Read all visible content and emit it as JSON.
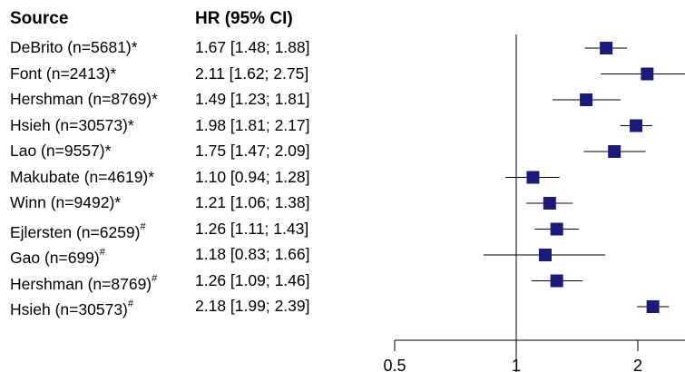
{
  "header": {
    "source_label": "Source",
    "hr_label": "HR (95% CI)"
  },
  "colors": {
    "marker": "#1a1a7a",
    "line": "#000000"
  },
  "chart_data": {
    "type": "forest",
    "xscale": "log",
    "xlim": [
      0.5,
      2.3
    ],
    "ticks": [
      "0.5",
      "1",
      "2"
    ],
    "tick_values": [
      0.5,
      1,
      2
    ],
    "reference_line": 1,
    "rows": [
      {
        "source": "DeBrito (n=5681)",
        "mark": "*",
        "hr_text": "1.67 [1.48; 1.88]",
        "hr": 1.67,
        "lo": 1.48,
        "hi": 1.88
      },
      {
        "source": "Font (n=2413)",
        "mark": "*",
        "hr_text": "2.11 [1.62; 2.75]",
        "hr": 2.11,
        "lo": 1.62,
        "hi": 2.75
      },
      {
        "source": "Hershman (n=8769)",
        "mark": "*",
        "hr_text": "1.49 [1.23; 1.81]",
        "hr": 1.49,
        "lo": 1.23,
        "hi": 1.81
      },
      {
        "source": "Hsieh (n=30573)",
        "mark": "*",
        "hr_text": "1.98 [1.81; 2.17]",
        "hr": 1.98,
        "lo": 1.81,
        "hi": 2.17
      },
      {
        "source": "Lao (n=9557)",
        "mark": "*",
        "hr_text": "1.75 [1.47; 2.09]",
        "hr": 1.75,
        "lo": 1.47,
        "hi": 2.09
      },
      {
        "source": "Makubate (n=4619)",
        "mark": "*",
        "hr_text": "1.10 [0.94; 1.28]",
        "hr": 1.1,
        "lo": 0.94,
        "hi": 1.28
      },
      {
        "source": "Winn (n=9492)",
        "mark": "*",
        "hr_text": "1.21 [1.06; 1.38]",
        "hr": 1.21,
        "lo": 1.06,
        "hi": 1.38
      },
      {
        "source": "Ejlersten (n=6259)",
        "mark": "#",
        "hr_text": "1.26 [1.11; 1.43]",
        "hr": 1.26,
        "lo": 1.11,
        "hi": 1.43
      },
      {
        "source": "Gao (n=699)",
        "mark": "#",
        "hr_text": "1.18 [0.83; 1.66]",
        "hr": 1.18,
        "lo": 0.83,
        "hi": 1.66
      },
      {
        "source": "Hershman (n=8769)",
        "mark": "#",
        "hr_text": "1.26 [1.09; 1.46]",
        "hr": 1.26,
        "lo": 1.09,
        "hi": 1.46
      },
      {
        "source": "Hsieh (n=30573)",
        "mark": "#",
        "hr_text": "2.18 [1.99; 2.39]",
        "hr": 2.18,
        "lo": 1.99,
        "hi": 2.39
      }
    ]
  }
}
